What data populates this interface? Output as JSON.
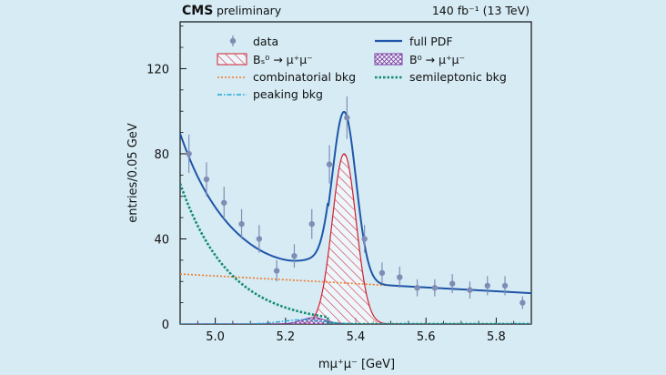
{
  "chart_data": {
    "type": "line",
    "experiment_label": "CMS",
    "status_label": "preliminary",
    "lumi_label": "140 fb⁻¹ (13 TeV)",
    "xlabel": "mμ⁺μ⁻ [GeV]",
    "ylabel": "entries/0.05 GeV",
    "xlim": [
      4.9,
      5.9
    ],
    "ylim": [
      0,
      142
    ],
    "x_ticks": [
      5.0,
      5.2,
      5.4,
      5.6,
      5.8
    ],
    "x_tick_labels": [
      "5.0",
      "5.2",
      "5.4",
      "5.6",
      "5.8"
    ],
    "y_ticks": [
      0,
      40,
      80,
      120
    ],
    "y_tick_labels": [
      "0",
      "40",
      "80",
      "120"
    ],
    "legend": {
      "data": "data",
      "full_pdf": "full PDF",
      "bs_signal": "Bₛ⁰ → μ⁺μ⁻",
      "b0_signal": "B⁰ → μ⁺μ⁻",
      "combinatorial": "combinatorial bkg",
      "semileptonic": "semileptonic bkg",
      "peaking": "peaking bkg"
    },
    "colors": {
      "data": "#7f8db5",
      "full_pdf": "#1f56a8",
      "bs": "#d02030",
      "b0": "#7a3aa0",
      "combinatorial": "#f07828",
      "semileptonic": "#128a72",
      "peaking": "#22a6d8"
    },
    "data_points": {
      "x": [
        4.925,
        4.975,
        5.025,
        5.075,
        5.125,
        5.175,
        5.225,
        5.275,
        5.325,
        5.375,
        5.425,
        5.475,
        5.525,
        5.575,
        5.625,
        5.675,
        5.725,
        5.775,
        5.825,
        5.875
      ],
      "y": [
        80,
        68,
        57,
        47,
        40,
        25,
        32,
        47,
        75,
        97,
        40,
        24,
        22,
        17,
        17,
        19,
        16,
        18,
        18,
        10
      ],
      "err": [
        9,
        8,
        7.5,
        7,
        6.5,
        5,
        5.5,
        7,
        9,
        10,
        6.5,
        5,
        5,
        4,
        4,
        4.5,
        4,
        4.5,
        4.5,
        3
      ]
    },
    "components": {
      "bs_peak": {
        "mean": 5.367,
        "sigma": 0.034,
        "amplitude": 80
      },
      "b0_peak": {
        "mean": 5.28,
        "sigma": 0.034,
        "amplitude": 3
      },
      "peaking_bkg": {
        "mean": 5.25,
        "sigma": 0.06,
        "amplitude": 2
      },
      "combinatorial": {
        "x": [
          4.9,
          5.9
        ],
        "y": [
          23.5,
          14.5
        ]
      },
      "semileptonic": {
        "start": 4.9,
        "start_value": 66,
        "decay": 0.14,
        "cutoff": 5.32
      }
    }
  }
}
